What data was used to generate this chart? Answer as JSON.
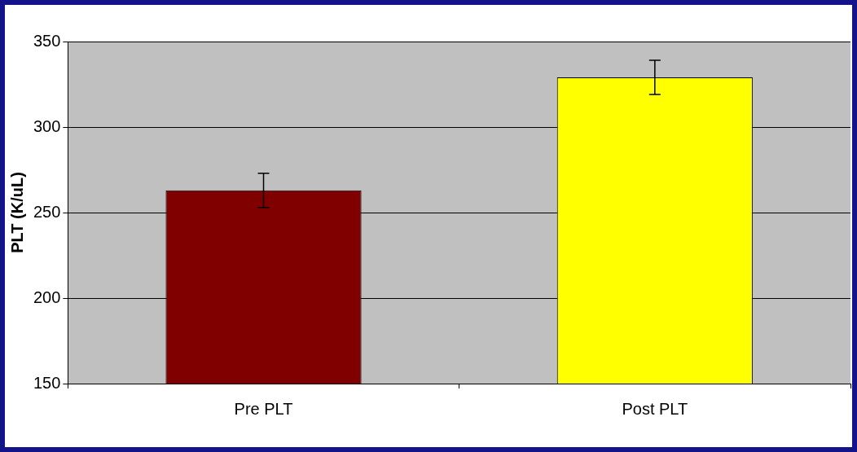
{
  "chart_data": {
    "type": "bar",
    "ylabel": "PLT (K/uL)",
    "categories": [
      "Pre PLT",
      "Post PLT"
    ],
    "values": [
      263,
      329
    ],
    "errors": [
      10,
      10
    ],
    "colors": [
      "#800000",
      "#ffff00"
    ],
    "ylim": [
      150,
      350
    ],
    "yticks": [
      150,
      200,
      250,
      300,
      350
    ],
    "grid": "y"
  }
}
